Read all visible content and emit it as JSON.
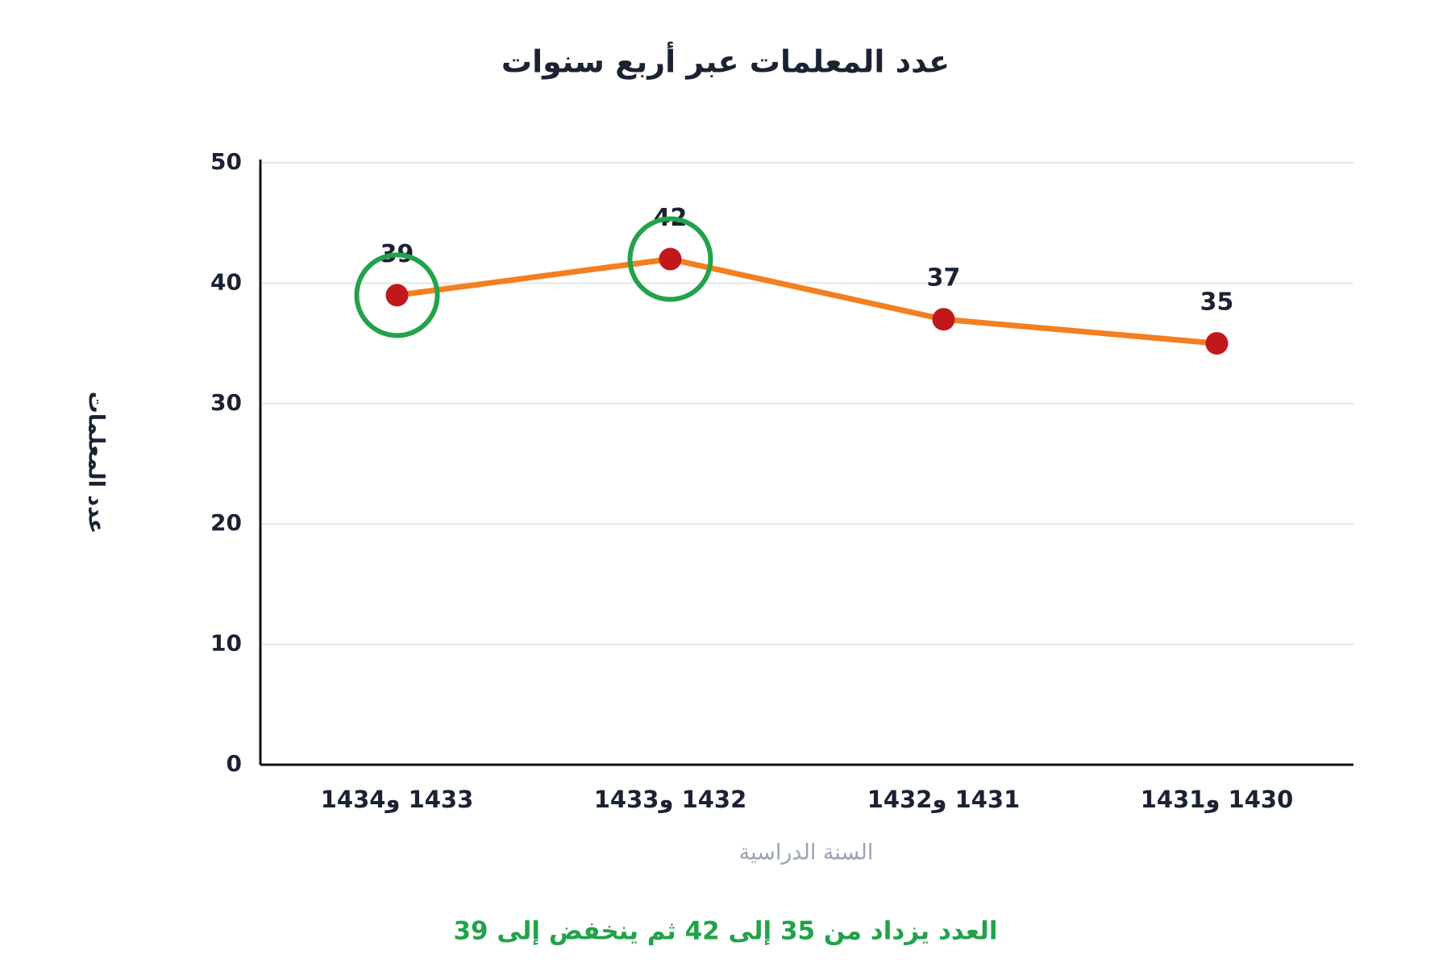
{
  "chart_data": {
    "type": "line",
    "title": "عدد المعلمات عبر أربع سنوات",
    "x_label": "السنة الدراسية",
    "y_label": "عدد المعلمات",
    "categories": [
      "1433 و1434",
      "1432 و1433",
      "1431 و1432",
      "1430 و1431"
    ],
    "values": [
      39,
      42,
      37,
      35
    ],
    "color": "#f47f20",
    "marker_color": "#c0181b",
    "highlighted": [
      0,
      1
    ],
    "highlight_color": "#22a24a",
    "ylim": [
      0,
      50
    ],
    "yticks": [
      0,
      10,
      20,
      30,
      40,
      50
    ],
    "grid": true,
    "annotation": "العدد يزداد من 35 إلى 42 ثم ينخفض إلى 39"
  }
}
